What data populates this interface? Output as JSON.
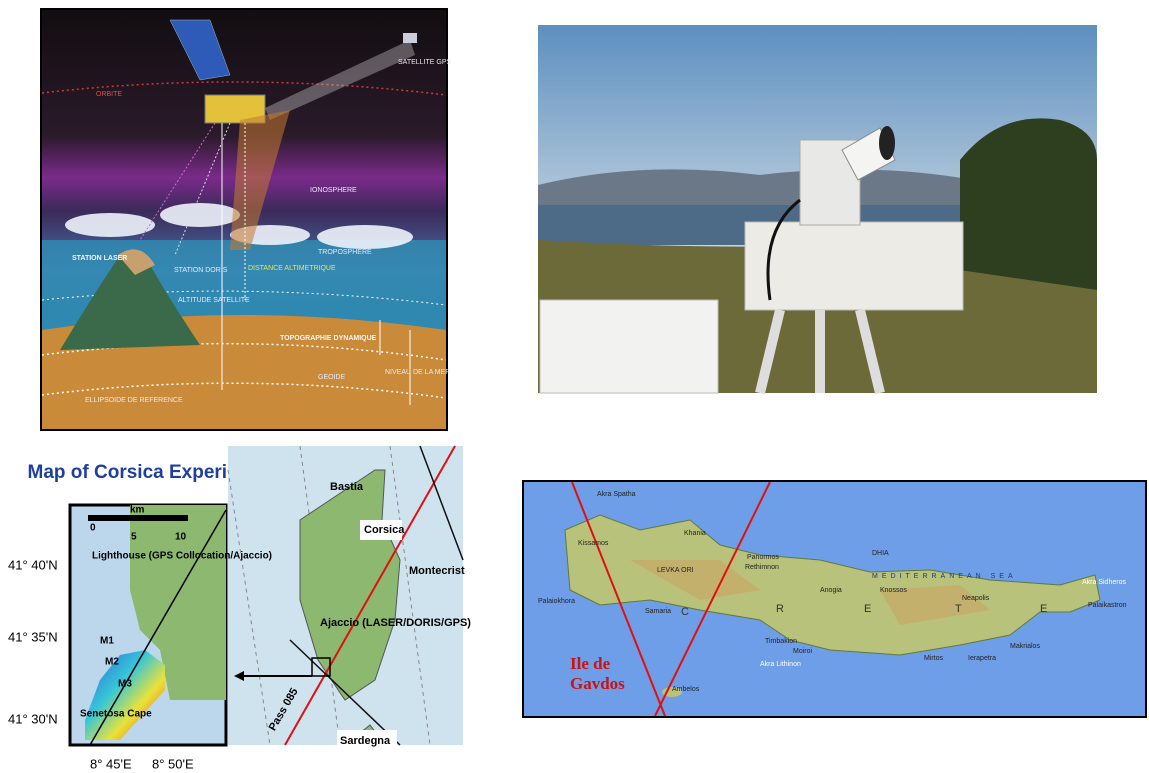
{
  "satellite": {
    "labels": [
      "SATELLITE GPS",
      "ORBITE",
      "IONOSPHERE",
      "STATION LASER",
      "STATION DORIS",
      "DISTANCE ALTIMETRIQUE",
      "TROPOSPHERE",
      "ALTITUDE SATELLITE",
      "TOPOGRAPHIE DYNAMIQUE",
      "NIVEAU DE LA MER",
      "GEOIDE",
      "ELLIPSOIDE DE REFERENCE"
    ]
  },
  "corsica": {
    "title": "Map of Corsica Experiment",
    "inset": {
      "scale_unit": "km",
      "scale_ticks": [
        "0",
        "5",
        "10"
      ],
      "lighthouse": "Lighthouse (GPS Collocation/Ajaccio)",
      "marks": [
        "M1",
        "M2",
        "M3"
      ],
      "cape": "Senetosa Cape",
      "latitudes": [
        "41° 40'N",
        "41° 35'N",
        "41° 30'N"
      ],
      "longitudes": [
        "8° 45'E",
        "8° 50'E"
      ]
    },
    "map": {
      "labels": [
        "Bastia",
        "Corsica",
        "Montecrist",
        "Ajaccio (LASER/DORIS/GPS)",
        "Pass 085",
        "Sardegna"
      ]
    }
  },
  "crete": {
    "places": [
      "Akra Spatha",
      "Kissamos",
      "Khania",
      "Palaiokhora",
      "LEVKA ORI",
      "Samaria",
      "Rethimnon",
      "Panormos",
      "Anogia",
      "Knossos",
      "DHIA",
      "MEDITERRANEAN SEA",
      "Neapolis",
      "Akra Sidheros",
      "Palaikastron",
      "Timbakion",
      "Moiroi",
      "Akra Lithinon",
      "Mirtos",
      "Ierapetra",
      "Makrialos",
      "Ambelos"
    ],
    "island_name": [
      "C",
      "R",
      "E",
      "T",
      "E"
    ],
    "gavdos": "Ile de Gavdos"
  }
}
